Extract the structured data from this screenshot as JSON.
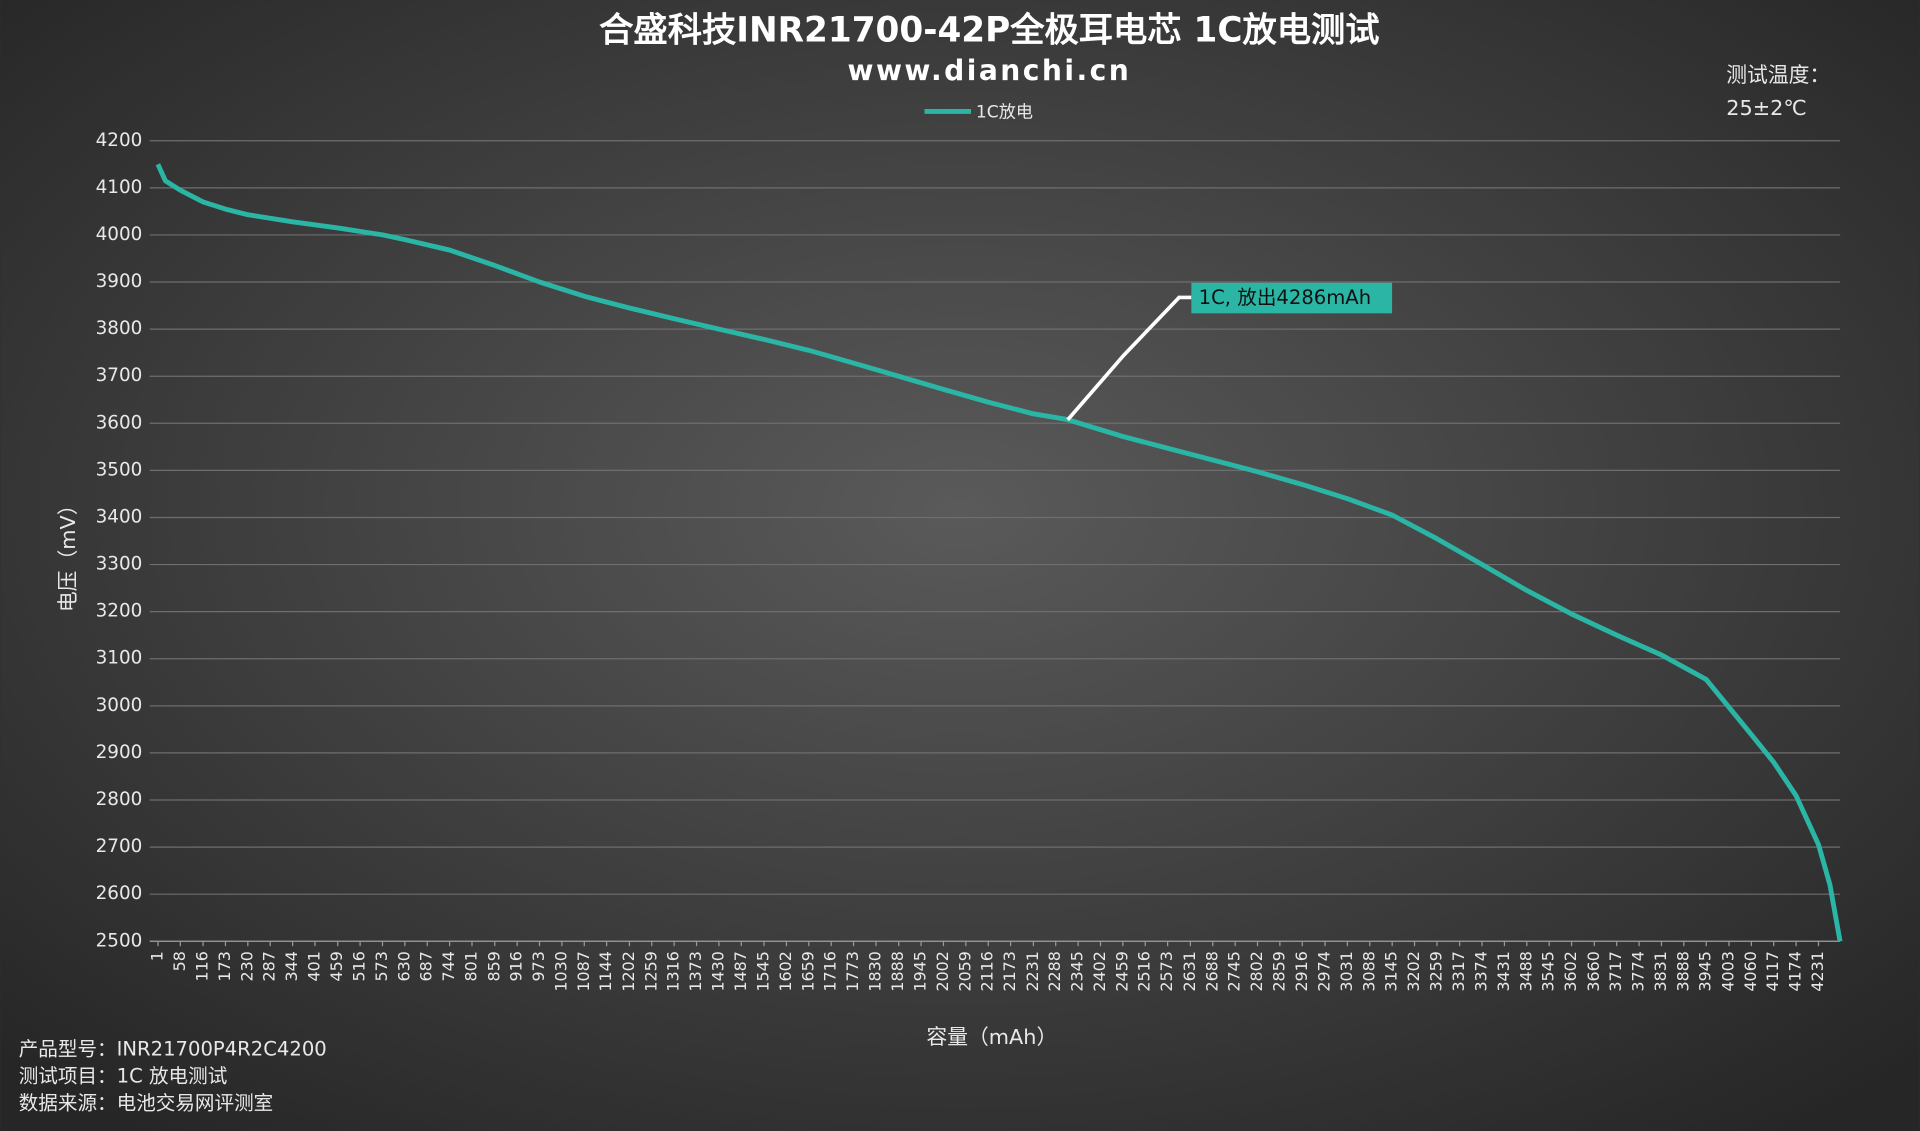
{
  "chart_data": {
    "type": "line",
    "title": "合盛科技INR21700-42P全极耳电芯 1C放电测试",
    "subtitle": "www.dianchi.cn",
    "temperature_label": "测试温度：",
    "temperature_value": "25±2℃",
    "x_label": "容量（mAh）",
    "y_label": "电压（mV）",
    "info": [
      "产品型号：INR21700P4R2C4200",
      "测试项目：1C 放电测试",
      "数据来源：电池交易网评测室"
    ],
    "annotation": "1C, 放出4286mAh",
    "grid": true,
    "legend": "top",
    "xlim": [
      -20,
      4286
    ],
    "ylim": [
      2500,
      4200
    ],
    "yticks": [
      2500,
      2600,
      2700,
      2800,
      2900,
      3000,
      3100,
      3200,
      3300,
      3400,
      3500,
      3600,
      3700,
      3800,
      3900,
      4000,
      4100,
      4200
    ],
    "xticks": [
      1,
      58,
      116,
      173,
      230,
      287,
      344,
      401,
      459,
      516,
      573,
      630,
      687,
      744,
      801,
      859,
      916,
      973,
      1030,
      1087,
      1144,
      1202,
      1259,
      1316,
      1373,
      1430,
      1487,
      1545,
      1602,
      1659,
      1716,
      1773,
      1830,
      1888,
      1945,
      2002,
      2059,
      2116,
      2173,
      2231,
      2288,
      2345,
      2402,
      2459,
      2516,
      2573,
      2631,
      2688,
      2745,
      2802,
      2859,
      2916,
      2974,
      3031,
      3088,
      3145,
      3202,
      3259,
      3317,
      3374,
      3431,
      3488,
      3545,
      3602,
      3660,
      3717,
      3774,
      3831,
      3888,
      3945,
      4003,
      4060,
      4117,
      4174,
      4231
    ],
    "series": [
      {
        "name": "1C放电",
        "color": "#2ab5a5",
        "x": [
          1,
          20,
          58,
          116,
          173,
          230,
          344,
          459,
          573,
          630,
          744,
          859,
          973,
          1087,
          1202,
          1316,
          1430,
          1545,
          1659,
          1773,
          1888,
          2002,
          2116,
          2231,
          2317,
          2459,
          2573,
          2688,
          2802,
          2916,
          3031,
          3145,
          3259,
          3374,
          3488,
          3602,
          3717,
          3831,
          3945,
          4060,
          4117,
          4174,
          4231,
          4260,
          4286
        ],
        "values": [
          4150,
          4115,
          4095,
          4070,
          4055,
          4043,
          4028,
          4015,
          4000,
          3990,
          3968,
          3935,
          3900,
          3870,
          3845,
          3822,
          3800,
          3778,
          3755,
          3728,
          3700,
          3672,
          3645,
          3620,
          3608,
          3572,
          3547,
          3522,
          3497,
          3470,
          3440,
          3405,
          3355,
          3300,
          3245,
          3195,
          3150,
          3108,
          3056,
          2939,
          2880,
          2809,
          2705,
          2620,
          2500
        ]
      }
    ]
  }
}
